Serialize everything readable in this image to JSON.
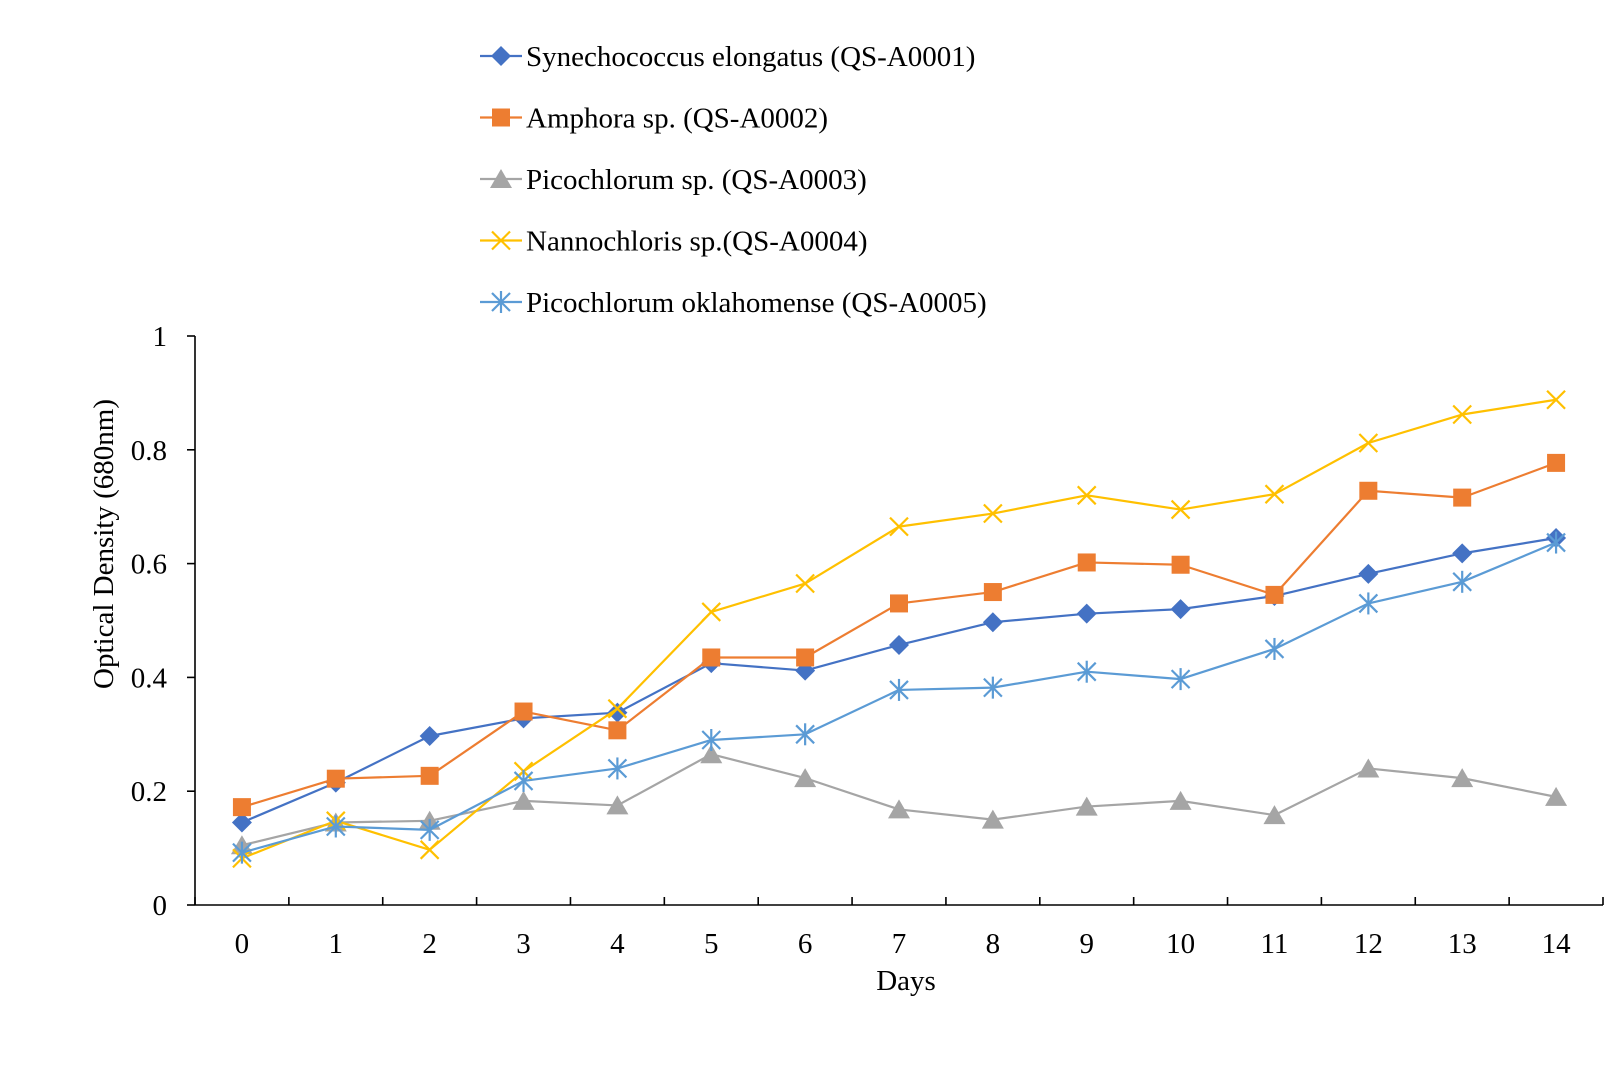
{
  "chart_data": {
    "type": "line",
    "xlabel": "Days",
    "ylabel": "Optical Density (680nm)",
    "categories": [
      "0",
      "1",
      "2",
      "3",
      "4",
      "5",
      "6",
      "7",
      "8",
      "9",
      "10",
      "11",
      "12",
      "13",
      "14"
    ],
    "ylim": [
      0,
      1
    ],
    "yticks": [
      "0",
      "0.2",
      "0.4",
      "0.6",
      "0.8",
      "1"
    ],
    "grid": false,
    "legend_position": "top",
    "series": [
      {
        "name": "Synechococcus elongatus (QS-A0001)",
        "color": "#4472C4",
        "marker": "diamond",
        "values": [
          0.145,
          0.215,
          0.297,
          0.328,
          0.338,
          0.425,
          0.412,
          0.457,
          0.497,
          0.512,
          0.52,
          0.543,
          0.582,
          0.618,
          0.645
        ]
      },
      {
        "name": "Amphora sp. (QS-A0002)",
        "color": "#ED7D31",
        "marker": "square",
        "values": [
          0.172,
          0.222,
          0.227,
          0.34,
          0.307,
          0.435,
          0.435,
          0.53,
          0.55,
          0.602,
          0.598,
          0.545,
          0.728,
          0.716,
          0.777
        ]
      },
      {
        "name": "Picochlorum sp. (QS-A0003)",
        "color": "#A5A5A5",
        "marker": "triangle",
        "values": [
          0.105,
          0.145,
          0.148,
          0.183,
          0.175,
          0.265,
          0.223,
          0.168,
          0.15,
          0.173,
          0.183,
          0.158,
          0.24,
          0.223,
          0.19
        ]
      },
      {
        "name": "Nannochloris sp.(QS-A0004)",
        "color": "#FFC000",
        "marker": "x",
        "values": [
          0.082,
          0.148,
          0.097,
          0.235,
          0.345,
          0.515,
          0.565,
          0.665,
          0.688,
          0.72,
          0.695,
          0.722,
          0.812,
          0.862,
          0.888
        ]
      },
      {
        "name": "Picochlorum oklahomense (QS-A0005)",
        "color": "#5B9BD5",
        "marker": "star",
        "values": [
          0.092,
          0.138,
          0.132,
          0.218,
          0.24,
          0.29,
          0.3,
          0.378,
          0.382,
          0.41,
          0.397,
          0.45,
          0.53,
          0.568,
          0.637
        ]
      }
    ]
  }
}
